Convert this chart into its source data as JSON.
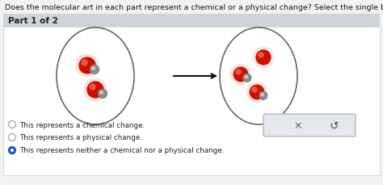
{
  "title": "Does the molecular art in each part represent a chemical or a physical change? Select the single best answer for each part.",
  "part_label": "Part 1 of 2",
  "bg_color": "#f2f2f2",
  "panel_bg": "#ffffff",
  "header_bg": "#ced4d9",
  "title_fontsize": 6.8,
  "part_fontsize": 7.5,
  "radio_options": [
    "This represents a chemical change.",
    "This represents a physical change.",
    "This represents neither a chemical nor a physical change."
  ],
  "selected_option": 2,
  "button_bg": "#e4e8ec",
  "button_border": "#aaaaaa"
}
